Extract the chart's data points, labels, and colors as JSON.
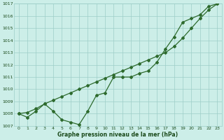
{
  "line1_x": [
    0,
    1,
    2,
    3,
    4,
    5,
    6,
    7,
    8,
    9,
    10,
    11,
    12,
    13,
    14,
    15,
    16,
    17,
    18,
    19,
    20,
    21,
    22,
    23
  ],
  "line1_y": [
    1008.0,
    1008.1,
    1008.4,
    1008.8,
    1009.1,
    1009.4,
    1009.7,
    1010.0,
    1010.3,
    1010.6,
    1010.9,
    1011.2,
    1011.5,
    1011.8,
    1012.1,
    1012.4,
    1012.7,
    1013.0,
    1013.5,
    1014.2,
    1015.0,
    1015.8,
    1016.5,
    1017.0
  ],
  "line2_x": [
    0,
    1,
    2,
    3,
    4,
    5,
    6,
    7,
    8,
    9,
    10,
    11,
    12,
    13,
    14,
    15,
    16,
    17,
    18,
    19,
    20,
    21,
    22,
    23
  ],
  "line2_y": [
    1008.0,
    1007.7,
    1008.2,
    1008.8,
    1008.2,
    1007.5,
    1007.3,
    1007.1,
    1008.2,
    1009.5,
    1009.7,
    1011.0,
    1011.0,
    1011.0,
    1011.3,
    1011.5,
    1012.2,
    1013.3,
    1014.3,
    1015.5,
    1015.8,
    1016.1,
    1016.8,
    1017.0
  ],
  "line_color": "#2d6a2d",
  "bg_color": "#cceee8",
  "grid_color": "#9ecec8",
  "ylim": [
    1007,
    1017
  ],
  "xlim": [
    -0.5,
    23.5
  ],
  "yticks": [
    1007,
    1008,
    1009,
    1010,
    1011,
    1012,
    1013,
    1014,
    1015,
    1016,
    1017
  ],
  "xticks": [
    0,
    1,
    2,
    3,
    4,
    5,
    6,
    7,
    8,
    9,
    10,
    11,
    12,
    13,
    14,
    15,
    16,
    17,
    18,
    19,
    20,
    21,
    22,
    23
  ],
  "xlabel": "Graphe pression niveau de la mer (hPa)",
  "xlabel_color": "#1a4a1a",
  "tick_color": "#1a4a1a",
  "marker": "D",
  "marker_size": 2.0,
  "line_width": 0.9
}
